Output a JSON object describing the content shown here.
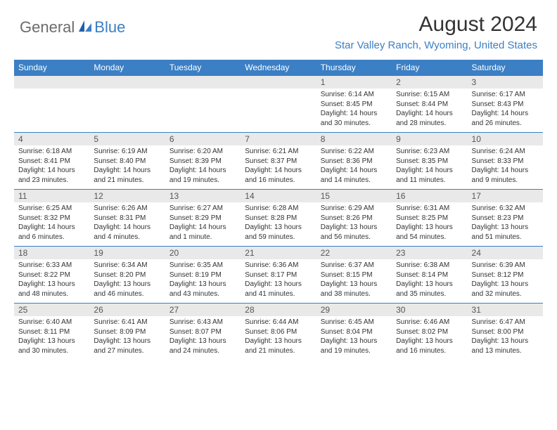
{
  "logo": {
    "general": "General",
    "blue": "Blue"
  },
  "title": "August 2024",
  "location": "Star Valley Ranch, Wyoming, United States",
  "colors": {
    "header_bg": "#3b7fc4",
    "header_text": "#ffffff",
    "daynum_bg": "#e9e9e9",
    "row_border": "#3b7fc4",
    "logo_gray": "#6b6b6b",
    "logo_blue": "#3b7fc4"
  },
  "day_headers": [
    "Sunday",
    "Monday",
    "Tuesday",
    "Wednesday",
    "Thursday",
    "Friday",
    "Saturday"
  ],
  "weeks": [
    [
      {
        "n": "",
        "sr": "",
        "ss": "",
        "dl": ""
      },
      {
        "n": "",
        "sr": "",
        "ss": "",
        "dl": ""
      },
      {
        "n": "",
        "sr": "",
        "ss": "",
        "dl": ""
      },
      {
        "n": "",
        "sr": "",
        "ss": "",
        "dl": ""
      },
      {
        "n": "1",
        "sr": "Sunrise: 6:14 AM",
        "ss": "Sunset: 8:45 PM",
        "dl": "Daylight: 14 hours and 30 minutes."
      },
      {
        "n": "2",
        "sr": "Sunrise: 6:15 AM",
        "ss": "Sunset: 8:44 PM",
        "dl": "Daylight: 14 hours and 28 minutes."
      },
      {
        "n": "3",
        "sr": "Sunrise: 6:17 AM",
        "ss": "Sunset: 8:43 PM",
        "dl": "Daylight: 14 hours and 26 minutes."
      }
    ],
    [
      {
        "n": "4",
        "sr": "Sunrise: 6:18 AM",
        "ss": "Sunset: 8:41 PM",
        "dl": "Daylight: 14 hours and 23 minutes."
      },
      {
        "n": "5",
        "sr": "Sunrise: 6:19 AM",
        "ss": "Sunset: 8:40 PM",
        "dl": "Daylight: 14 hours and 21 minutes."
      },
      {
        "n": "6",
        "sr": "Sunrise: 6:20 AM",
        "ss": "Sunset: 8:39 PM",
        "dl": "Daylight: 14 hours and 19 minutes."
      },
      {
        "n": "7",
        "sr": "Sunrise: 6:21 AM",
        "ss": "Sunset: 8:37 PM",
        "dl": "Daylight: 14 hours and 16 minutes."
      },
      {
        "n": "8",
        "sr": "Sunrise: 6:22 AM",
        "ss": "Sunset: 8:36 PM",
        "dl": "Daylight: 14 hours and 14 minutes."
      },
      {
        "n": "9",
        "sr": "Sunrise: 6:23 AM",
        "ss": "Sunset: 8:35 PM",
        "dl": "Daylight: 14 hours and 11 minutes."
      },
      {
        "n": "10",
        "sr": "Sunrise: 6:24 AM",
        "ss": "Sunset: 8:33 PM",
        "dl": "Daylight: 14 hours and 9 minutes."
      }
    ],
    [
      {
        "n": "11",
        "sr": "Sunrise: 6:25 AM",
        "ss": "Sunset: 8:32 PM",
        "dl": "Daylight: 14 hours and 6 minutes."
      },
      {
        "n": "12",
        "sr": "Sunrise: 6:26 AM",
        "ss": "Sunset: 8:31 PM",
        "dl": "Daylight: 14 hours and 4 minutes."
      },
      {
        "n": "13",
        "sr": "Sunrise: 6:27 AM",
        "ss": "Sunset: 8:29 PM",
        "dl": "Daylight: 14 hours and 1 minute."
      },
      {
        "n": "14",
        "sr": "Sunrise: 6:28 AM",
        "ss": "Sunset: 8:28 PM",
        "dl": "Daylight: 13 hours and 59 minutes."
      },
      {
        "n": "15",
        "sr": "Sunrise: 6:29 AM",
        "ss": "Sunset: 8:26 PM",
        "dl": "Daylight: 13 hours and 56 minutes."
      },
      {
        "n": "16",
        "sr": "Sunrise: 6:31 AM",
        "ss": "Sunset: 8:25 PM",
        "dl": "Daylight: 13 hours and 54 minutes."
      },
      {
        "n": "17",
        "sr": "Sunrise: 6:32 AM",
        "ss": "Sunset: 8:23 PM",
        "dl": "Daylight: 13 hours and 51 minutes."
      }
    ],
    [
      {
        "n": "18",
        "sr": "Sunrise: 6:33 AM",
        "ss": "Sunset: 8:22 PM",
        "dl": "Daylight: 13 hours and 48 minutes."
      },
      {
        "n": "19",
        "sr": "Sunrise: 6:34 AM",
        "ss": "Sunset: 8:20 PM",
        "dl": "Daylight: 13 hours and 46 minutes."
      },
      {
        "n": "20",
        "sr": "Sunrise: 6:35 AM",
        "ss": "Sunset: 8:19 PM",
        "dl": "Daylight: 13 hours and 43 minutes."
      },
      {
        "n": "21",
        "sr": "Sunrise: 6:36 AM",
        "ss": "Sunset: 8:17 PM",
        "dl": "Daylight: 13 hours and 41 minutes."
      },
      {
        "n": "22",
        "sr": "Sunrise: 6:37 AM",
        "ss": "Sunset: 8:15 PM",
        "dl": "Daylight: 13 hours and 38 minutes."
      },
      {
        "n": "23",
        "sr": "Sunrise: 6:38 AM",
        "ss": "Sunset: 8:14 PM",
        "dl": "Daylight: 13 hours and 35 minutes."
      },
      {
        "n": "24",
        "sr": "Sunrise: 6:39 AM",
        "ss": "Sunset: 8:12 PM",
        "dl": "Daylight: 13 hours and 32 minutes."
      }
    ],
    [
      {
        "n": "25",
        "sr": "Sunrise: 6:40 AM",
        "ss": "Sunset: 8:11 PM",
        "dl": "Daylight: 13 hours and 30 minutes."
      },
      {
        "n": "26",
        "sr": "Sunrise: 6:41 AM",
        "ss": "Sunset: 8:09 PM",
        "dl": "Daylight: 13 hours and 27 minutes."
      },
      {
        "n": "27",
        "sr": "Sunrise: 6:43 AM",
        "ss": "Sunset: 8:07 PM",
        "dl": "Daylight: 13 hours and 24 minutes."
      },
      {
        "n": "28",
        "sr": "Sunrise: 6:44 AM",
        "ss": "Sunset: 8:06 PM",
        "dl": "Daylight: 13 hours and 21 minutes."
      },
      {
        "n": "29",
        "sr": "Sunrise: 6:45 AM",
        "ss": "Sunset: 8:04 PM",
        "dl": "Daylight: 13 hours and 19 minutes."
      },
      {
        "n": "30",
        "sr": "Sunrise: 6:46 AM",
        "ss": "Sunset: 8:02 PM",
        "dl": "Daylight: 13 hours and 16 minutes."
      },
      {
        "n": "31",
        "sr": "Sunrise: 6:47 AM",
        "ss": "Sunset: 8:00 PM",
        "dl": "Daylight: 13 hours and 13 minutes."
      }
    ]
  ]
}
